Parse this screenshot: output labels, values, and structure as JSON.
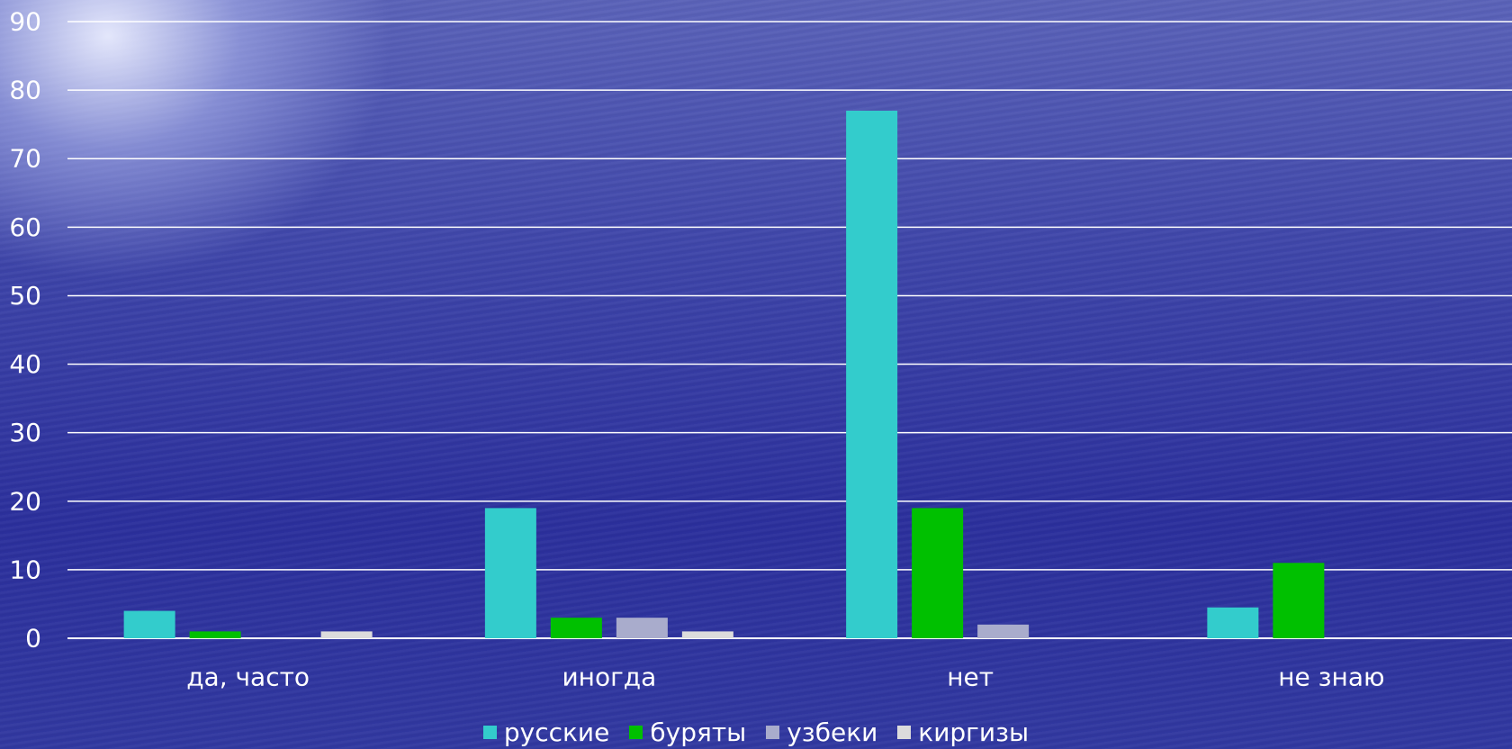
{
  "chart_data": {
    "type": "bar",
    "categories": [
      "да, часто",
      "иногда",
      "нет",
      "не знаю"
    ],
    "series": [
      {
        "name": "русские",
        "color": "#33cccc",
        "values": [
          4,
          19,
          77,
          4.5
        ]
      },
      {
        "name": "буряты",
        "color": "#00c000",
        "values": [
          1,
          3,
          19,
          11
        ]
      },
      {
        "name": "узбеки",
        "color": "#a9accc",
        "values": [
          0,
          3,
          2,
          0
        ]
      },
      {
        "name": "киргизы",
        "color": "#dcdcdc",
        "values": [
          1,
          1,
          0,
          0
        ]
      }
    ],
    "ylim": [
      0,
      90
    ],
    "yticks": [
      "0",
      "10",
      "20",
      "30",
      "40",
      "50",
      "60",
      "70",
      "80",
      "90"
    ],
    "grid": true,
    "legend_position": "bottom"
  }
}
